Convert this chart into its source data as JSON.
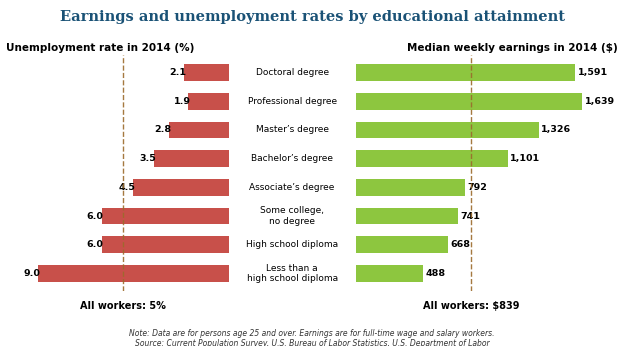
{
  "title": "Earnings and unemployment rates by educational attainment",
  "left_title": "Unemployment rate in 2014 (%)",
  "right_title": "Median weekly earnings in 2014 ($)",
  "left_footer": "All workers: 5%",
  "right_footer": "All workers: $839",
  "note_line1": "Note: Data are for persons age 25 and over. Earnings are for full-time wage and salary workers.",
  "note_line2": "Source: Current Population Survey, U.S. Bureau of Labor Statistics, U.S. Department of Labor",
  "categories": [
    "Doctoral degree",
    "Professional degree",
    "Master’s degree",
    "Bachelor’s degree",
    "Associate’s degree",
    "Some college,\nno degree",
    "High school diploma",
    "Less than a\nhigh school diploma"
  ],
  "unemployment": [
    2.1,
    1.9,
    2.8,
    3.5,
    4.5,
    6.0,
    6.0,
    9.0
  ],
  "earnings": [
    1591,
    1639,
    1326,
    1101,
    792,
    741,
    668,
    488
  ],
  "unemp_color": "#c8504a",
  "earn_color": "#8dc63f",
  "background_color": "#ffffff",
  "unemp_ref_line": 5.0,
  "earn_ref_line": 839,
  "unemp_max": 10.5,
  "earn_max": 1900,
  "bar_height": 0.58
}
